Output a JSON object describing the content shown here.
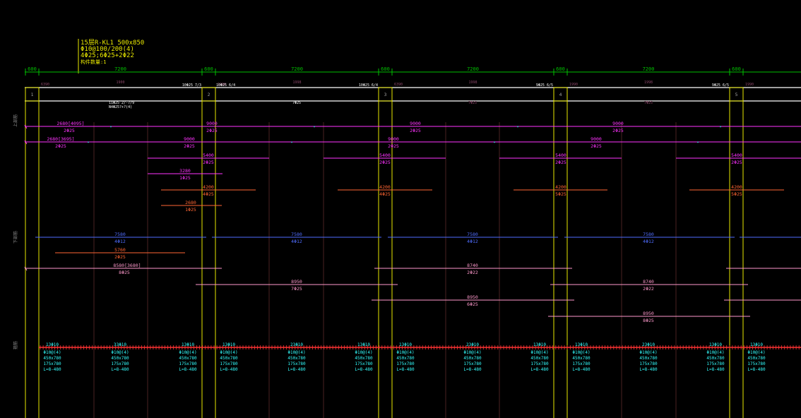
{
  "colors": {
    "background": "#000000",
    "green": "#00c000",
    "yellow": "#e8e800",
    "white": "#ffffff",
    "magenta": "#ff33ff",
    "orange": "#ff6633",
    "blue": "#4f6dff",
    "pink": "#ff99cc",
    "cyan": "#33ffff",
    "red": "#ff3333",
    "gridline": "#4a2222"
  },
  "beam_tag": {
    "lines": [
      "15层R-KL1 500x850",
      "Φ10@100/200(4)",
      "4Φ25;6Φ25+2Φ22",
      "构件数量:1"
    ]
  },
  "dims": {
    "column_width_label": "600",
    "span_length_label": "7200",
    "bottom_spans": [
      "1900",
      "1998",
      "1998",
      "1998"
    ],
    "col_bottom": [
      "6390",
      "1990",
      "6390",
      "1990",
      "1990"
    ]
  },
  "supports": [
    {
      "num": "1"
    },
    {
      "num": "2"
    },
    {
      "num": "3"
    },
    {
      "num": "4"
    },
    {
      "num": "5"
    }
  ],
  "support_tags": [
    "10Φ25 7/3",
    "10Φ25 6/4",
    "10Φ25 6/4",
    "9Φ25 6/5",
    "9Φ25 6/5"
  ],
  "span_notes": {
    "span1": [
      "11Φ25 2/-7/9",
      "N4Φ25?+?(4)"
    ],
    "span2": [
      "7Φ25"
    ],
    "span3": [
      "7Φ25"
    ],
    "span4": [
      "7Φ25"
    ]
  },
  "section_labels": [
    "上部筋",
    "下部筋",
    "箍筋"
  ],
  "top_bars": [
    {
      "len": "2680[4095]",
      "qty": "2Φ25",
      "row": "a"
    },
    {
      "len": "2680[3695]",
      "qty": "2Φ25",
      "row": "b"
    },
    {
      "len": "9000",
      "qty": "2Φ25"
    },
    {
      "len": "9000",
      "qty": "2Φ25"
    },
    {
      "len": "5400",
      "qty": "2Φ25"
    },
    {
      "len": "3280",
      "qty": "1Φ25"
    },
    {
      "len": "4200",
      "qty": "4Φ25"
    },
    {
      "len": "2680",
      "qty": "1Φ25"
    },
    {
      "len": "4200",
      "qty": "5Φ25"
    }
  ],
  "bottom_bars": [
    {
      "len": "7580",
      "qty": "4Φ12"
    },
    {
      "len": "5760",
      "qty": "2Φ25"
    },
    {
      "len": "8580[3680]",
      "qty": "8Φ25"
    },
    {
      "len": "8950",
      "qty": "7Φ25"
    },
    {
      "len": "8740",
      "qty": "2Φ22"
    },
    {
      "len": "8950",
      "qty": "6Φ25"
    },
    {
      "len": "8740",
      "qty": "2Φ22"
    },
    {
      "len": "8950",
      "qty": "8Φ25"
    }
  ],
  "stirrups": [
    {
      "count": "13Φ10",
      "spec": "Φ10@(4)",
      "size1": "450x780",
      "size2": "175x780",
      "len": "L=8-480"
    },
    {
      "count": "33Φ10",
      "spec": "Φ10@(4)",
      "size1": "450x780",
      "size2": "175x780",
      "len": "L=8-480"
    },
    {
      "count": "13Φ10",
      "spec": "Φ10@(4)",
      "size1": "450x780",
      "size2": "175x780",
      "len": "L=8-480"
    },
    {
      "count": "13Φ10",
      "spec": "Φ10@(4)",
      "size1": "450x780",
      "size2": "175x780",
      "len": "L=8-480"
    },
    {
      "count": "23Φ10",
      "spec": "Φ10@(4)",
      "size1": "450x780",
      "size2": "175x780",
      "len": "L=8-480"
    },
    {
      "count": "13Φ10",
      "spec": "Φ10@(4)",
      "size1": "450x780",
      "size2": "175x780",
      "len": "L=8-480"
    },
    {
      "count": "13Φ10",
      "spec": "Φ10@(4)",
      "size1": "450x780",
      "size2": "175x780",
      "len": "L=8-480"
    },
    {
      "count": "23Φ10",
      "spec": "Φ10@(4)",
      "size1": "450x780",
      "size2": "175x780",
      "len": "L=8-480"
    },
    {
      "count": "13Φ10",
      "spec": "Φ10@(4)",
      "size1": "450x780",
      "size2": "175x780",
      "len": "L=8-480"
    },
    {
      "count": "13Φ10",
      "spec": "Φ10@(4)",
      "size1": "450x780",
      "size2": "175x780",
      "len": "L=8-480"
    },
    {
      "count": "23Φ10",
      "spec": "Φ10@(4)",
      "size1": "450x780",
      "size2": "175x780",
      "len": "L=8-480"
    },
    {
      "count": "13Φ10",
      "spec": "Φ10@(4)",
      "size1": "450x780",
      "size2": "175x780",
      "len": "L=8-480"
    },
    {
      "count": "13Φ10",
      "spec": "Φ10@(4)",
      "size1": "450x780",
      "size2": "175x780",
      "len": "L=8-480"
    },
    {
      "count": "13Φ10",
      "spec": "Φ10@(4)",
      "size1": "450x780",
      "size2": "175x780",
      "len": "L=8-480"
    }
  ]
}
